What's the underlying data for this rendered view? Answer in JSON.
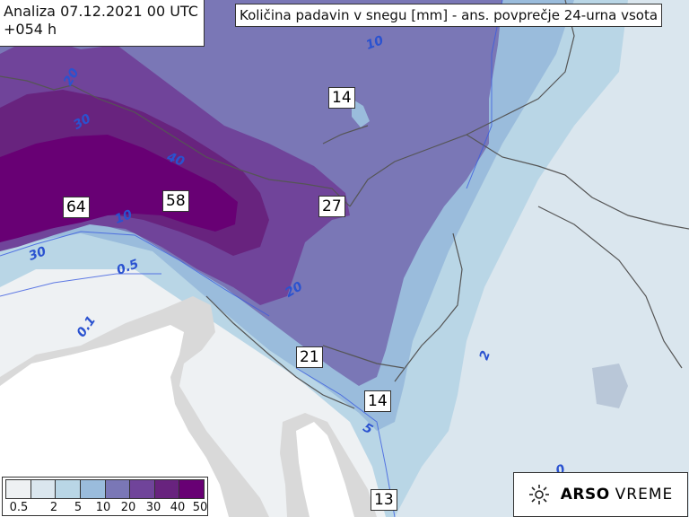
{
  "header": {
    "analysis_line": "Analiza 07.12.2021 00 UTC",
    "lead_line": "+054 h",
    "title": "Količina padavin v snegu [mm] - ans. povprečje 24-urna vsota"
  },
  "station_values": [
    {
      "id": "v14a",
      "text": "14"
    },
    {
      "id": "v64",
      "text": "64"
    },
    {
      "id": "v58",
      "text": "58"
    },
    {
      "id": "v27",
      "text": "27"
    },
    {
      "id": "v21",
      "text": "21"
    },
    {
      "id": "v14b",
      "text": "14"
    },
    {
      "id": "v13",
      "text": "13"
    }
  ],
  "isolines": [
    "10",
    "20",
    "30",
    "40",
    "10",
    "30",
    "0.5",
    "20",
    "0.1",
    "2",
    "5",
    "0"
  ],
  "legend": {
    "labels": [
      "0.5",
      "2",
      "5",
      "10",
      "20",
      "30",
      "40",
      "50"
    ],
    "colors": [
      "#eef1f3",
      "#dae6ee",
      "#b9d6e6",
      "#9abcdc",
      "#7a77b6",
      "#70449a",
      "#68237e",
      "#680074"
    ]
  },
  "logo": {
    "brand": "ARSO",
    "sub": "VREME",
    "icon": "sun-icon"
  },
  "colors": {
    "land_white": "#ffffff",
    "sea_gray": "#d9d9d9",
    "border_line": "#555555"
  }
}
